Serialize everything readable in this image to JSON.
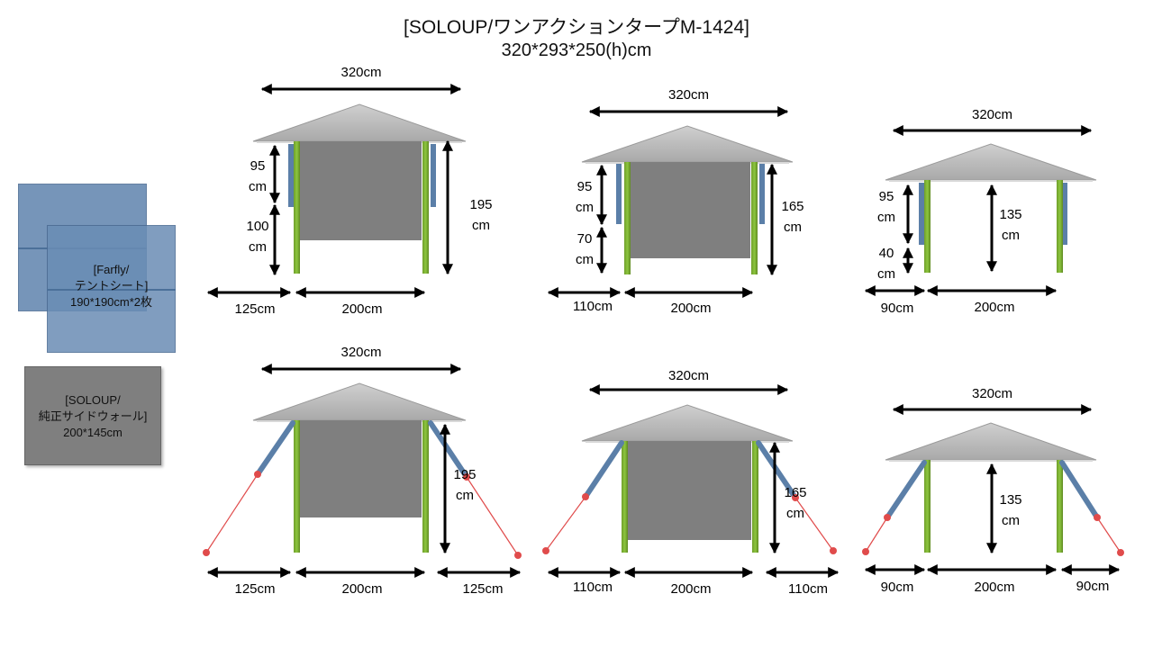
{
  "title": {
    "line1": "[SOLOUP/ワンアクションタープM-1424]",
    "line2": "320*293*250(h)cm"
  },
  "legend": {
    "tent_sheet": {
      "line1": "[Farfly/",
      "line2": "テントシート]",
      "line3": "190*190cm*2枚"
    },
    "side_wall": {
      "line1": "[SOLOUP/",
      "line2": "純正サイドウォール]",
      "line3": "200*145cm"
    }
  },
  "colors": {
    "roof": "#bdbdbd",
    "wall": "#7f7f7f",
    "pole": "#8dc63f",
    "sheet": "#5b7fa8",
    "rope": "#e04b4b",
    "arrow": "#000000"
  },
  "diagrams": {
    "top_row": [
      {
        "width": "320cm",
        "upper": "95\ncm",
        "lower": "100\ncm",
        "height": "195\ncm",
        "side": "125cm",
        "base": "200cm"
      },
      {
        "width": "320cm",
        "upper": "95\ncm",
        "lower": "70\ncm",
        "height": "165\ncm",
        "side": "110cm",
        "base": "200cm"
      },
      {
        "width": "320cm",
        "upper": "95\ncm",
        "lower": "40\ncm",
        "height": "135\ncm",
        "side": "90cm",
        "base": "200cm"
      }
    ],
    "bottom_row": [
      {
        "width": "320cm",
        "height": "195\ncm",
        "left": "125cm",
        "base": "200cm",
        "right": "125cm"
      },
      {
        "width": "320cm",
        "height": "165\ncm",
        "left": "110cm",
        "base": "200cm",
        "right": "110cm"
      },
      {
        "width": "320cm",
        "height": "135\ncm",
        "left": "90cm",
        "base": "200cm",
        "right": "90cm"
      }
    ]
  }
}
